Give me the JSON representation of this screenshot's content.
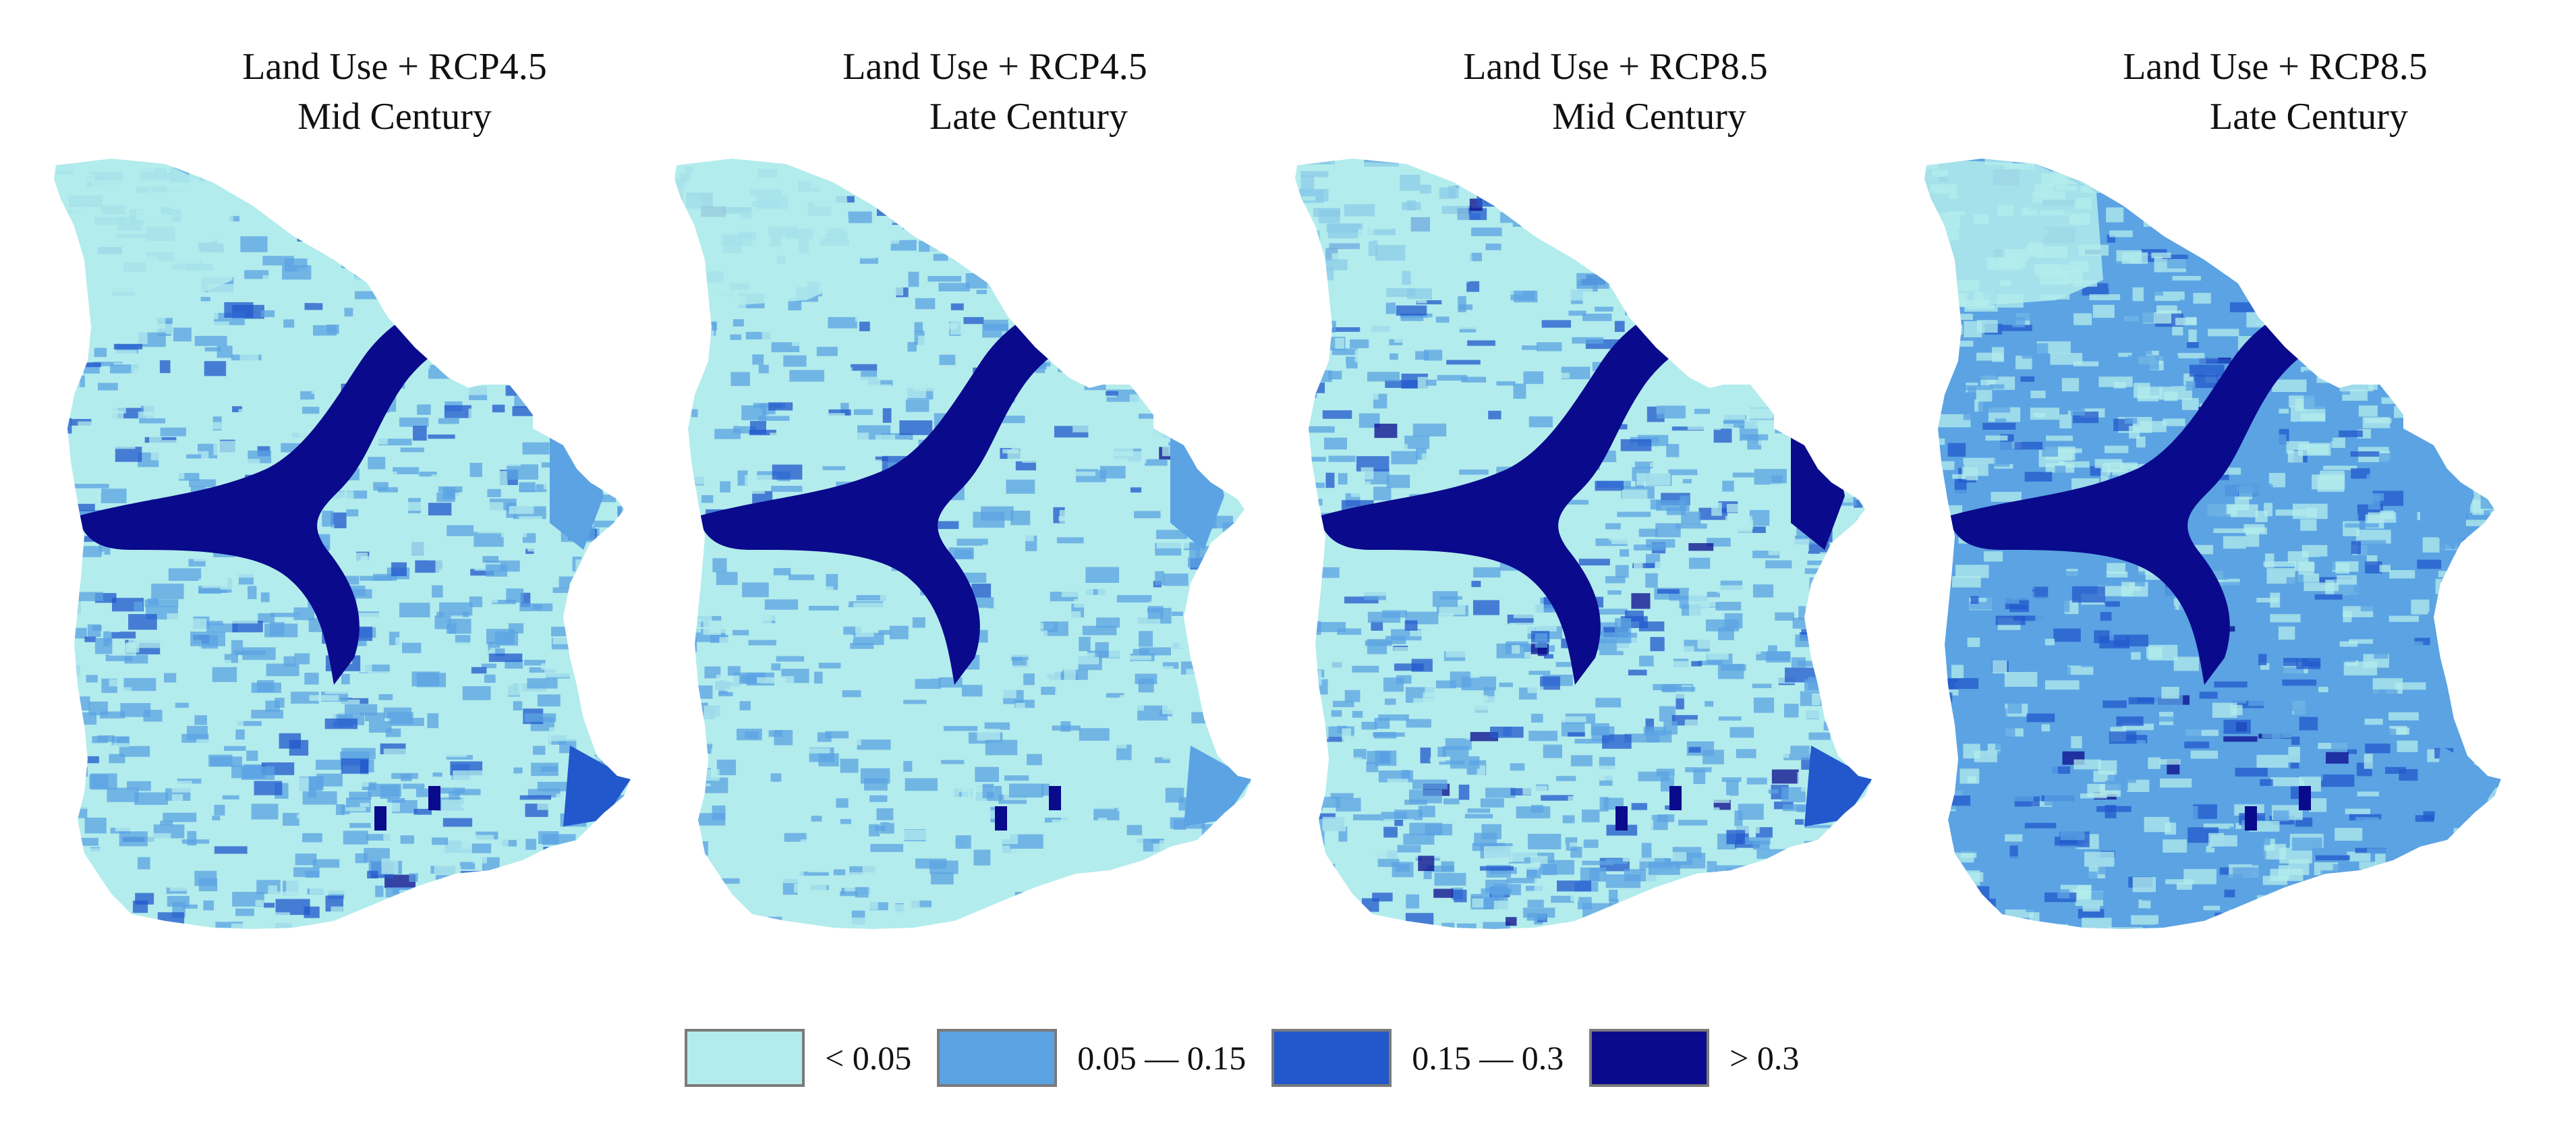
{
  "panels": [
    {
      "line1": "Land Use + RCP4.5",
      "line2": "Mid Century"
    },
    {
      "line1": "Land Use + RCP4.5",
      "line2": "Late Century"
    },
    {
      "line1": "Land Use + RCP8.5",
      "line2": "Mid Century"
    },
    {
      "line1": "Land Use + RCP8.5",
      "line2": "Late Century"
    }
  ],
  "legend": [
    {
      "label": "< 0.05",
      "color": "#b3ecec"
    },
    {
      "label": "0.05 — 0.15",
      "color": "#5ba3e3"
    },
    {
      "label": "0.15 — 0.3",
      "color": "#2258cc"
    },
    {
      "label": "> 0.3",
      "color": "#0a0a8c"
    }
  ]
}
